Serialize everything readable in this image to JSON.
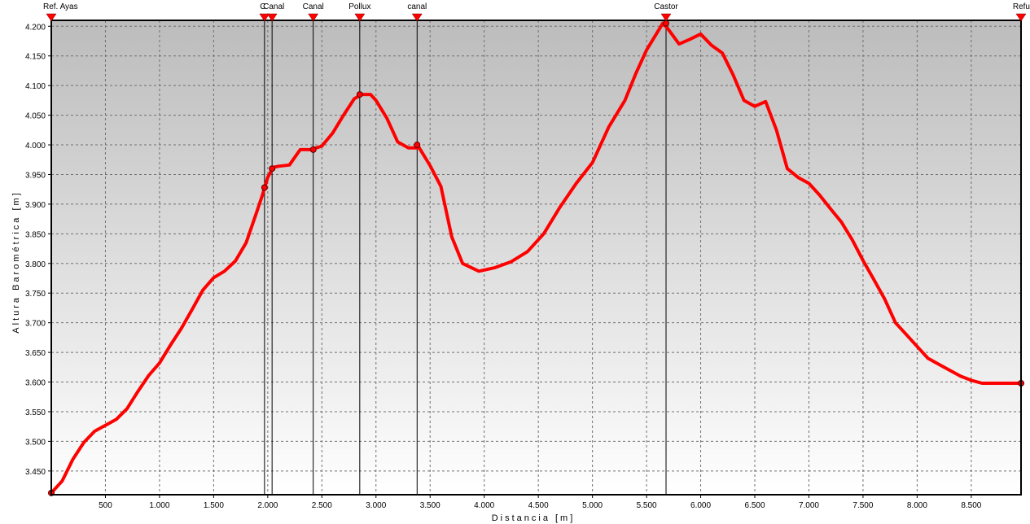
{
  "chart_data": {
    "type": "line",
    "xlabel": "Distancia [m]",
    "ylabel": "Altura Barométrica [m]",
    "xlim": [
      0,
      8960
    ],
    "ylim": [
      3410,
      4210
    ],
    "x_ticks": [
      500,
      1000,
      1500,
      2000,
      2500,
      3000,
      3500,
      4000,
      4500,
      5000,
      5500,
      6000,
      6500,
      7000,
      7500,
      8000,
      8500
    ],
    "x_tick_labels": [
      "500",
      "1.000",
      "1.500",
      "2.000",
      "2.500",
      "3.000",
      "3.500",
      "4.000",
      "4.500",
      "5.000",
      "5.500",
      "6.000",
      "6.500",
      "7.000",
      "7.500",
      "8.000",
      "8.500"
    ],
    "y_ticks": [
      3450,
      3500,
      3550,
      3600,
      3650,
      3700,
      3750,
      3800,
      3850,
      3900,
      3950,
      4000,
      4050,
      4100,
      4150,
      4200
    ],
    "y_tick_labels": [
      "3.450",
      "3.500",
      "3.550",
      "3.600",
      "3.650",
      "3.700",
      "3.750",
      "3.800",
      "3.850",
      "3.900",
      "3.950",
      "4.000",
      "4.050",
      "4.100",
      "4.150",
      "4.200"
    ],
    "grid": true,
    "series": [
      {
        "color": "#ff0000",
        "x": [
          0,
          100,
          200,
          300,
          400,
          500,
          600,
          700,
          800,
          900,
          1000,
          1100,
          1200,
          1300,
          1400,
          1500,
          1600,
          1700,
          1800,
          1900,
          1950,
          2000,
          2050,
          2100,
          2200,
          2300,
          2400,
          2500,
          2600,
          2700,
          2800,
          2870,
          2950,
          3000,
          3100,
          3200,
          3300,
          3400,
          3500,
          3600,
          3700,
          3800,
          3950,
          4100,
          4250,
          4400,
          4550,
          4700,
          4850,
          5000,
          5150,
          5300,
          5400,
          5500,
          5600,
          5650,
          5700,
          5800,
          5900,
          6000,
          6100,
          6200,
          6300,
          6400,
          6500,
          6600,
          6700,
          6800,
          6900,
          7000,
          7100,
          7200,
          7300,
          7400,
          7500,
          7600,
          7700,
          7800,
          7900,
          8000,
          8100,
          8200,
          8300,
          8400,
          8500,
          8600,
          8700,
          8800,
          8900,
          8960
        ],
        "y": [
          3413,
          3433,
          3470,
          3498,
          3517,
          3527,
          3537,
          3555,
          3584,
          3611,
          3632,
          3662,
          3690,
          3722,
          3755,
          3776,
          3787,
          3804,
          3835,
          3888,
          3915,
          3945,
          3962,
          3964,
          3966,
          3992,
          3992,
          3998,
          4020,
          4050,
          4078,
          4085,
          4085,
          4075,
          4045,
          4005,
          3995,
          3995,
          3965,
          3930,
          3845,
          3800,
          3787,
          3793,
          3803,
          3820,
          3850,
          3895,
          3935,
          3970,
          4030,
          4075,
          4120,
          4160,
          4190,
          4205,
          4195,
          4170,
          4178,
          4187,
          4168,
          4155,
          4118,
          4075,
          4065,
          4073,
          4025,
          3960,
          3945,
          3935,
          3915,
          3892,
          3870,
          3840,
          3805,
          3773,
          3740,
          3700,
          3680,
          3660,
          3640,
          3630,
          3620,
          3610,
          3603,
          3598,
          3598,
          3598,
          3598,
          3598
        ]
      }
    ],
    "waypoints": [
      {
        "name": "Ref. Ayas",
        "x": 0,
        "y": 3413
      },
      {
        "name": "C",
        "x": 1970,
        "y": 3928
      },
      {
        "name": "Canal",
        "x": 2040,
        "y": 3960
      },
      {
        "name": "Canal",
        "x": 2420,
        "y": 3992
      },
      {
        "name": "Pollux",
        "x": 2850,
        "y": 4085
      },
      {
        "name": "canal",
        "x": 3380,
        "y": 4000
      },
      {
        "name": "Castor",
        "x": 5680,
        "y": 4205
      },
      {
        "name": "Refu",
        "x": 8960,
        "y": 3598
      }
    ]
  },
  "colors": {
    "background_top": "#c0c0c0",
    "background_bottom": "#ffffff",
    "line": "#ff0000",
    "marker": "#ff0000"
  }
}
